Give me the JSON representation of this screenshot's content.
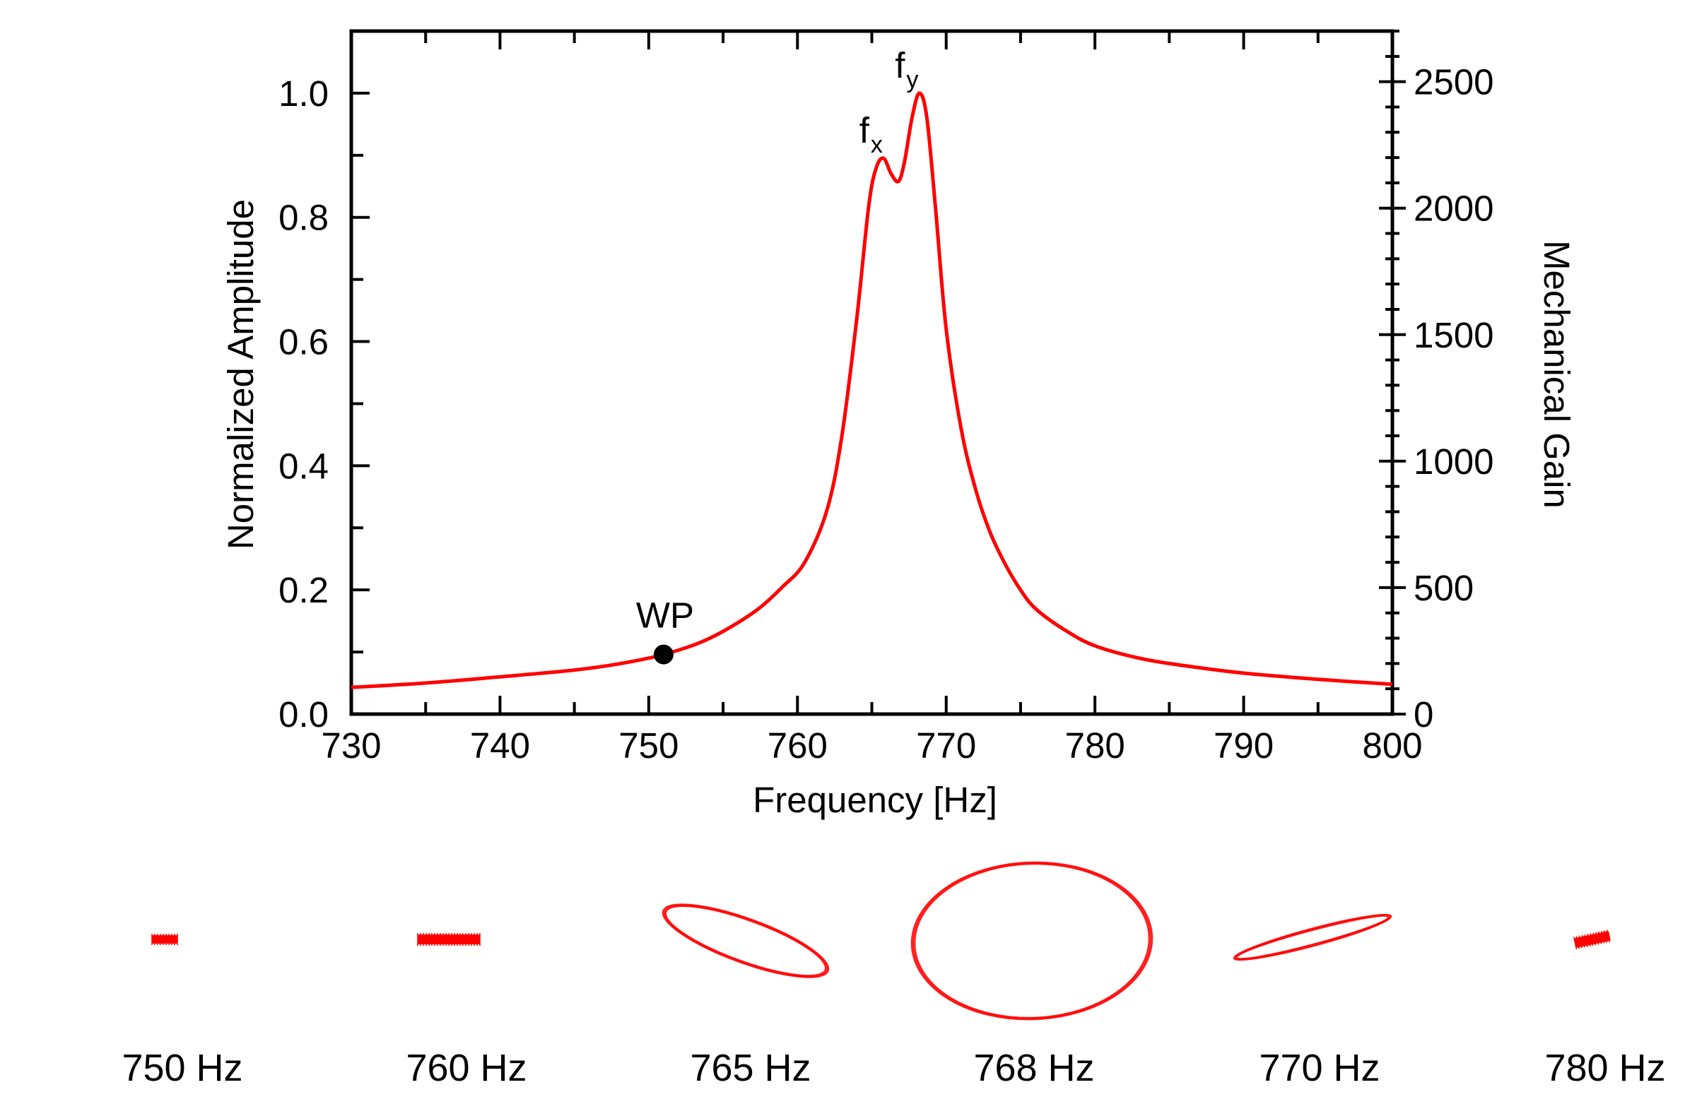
{
  "chart_data": {
    "type": "line",
    "xlabel": "Frequency [Hz]",
    "ylabel": "Normalized Amplitude",
    "y2label": "Mechanical Gain",
    "xlim": [
      730,
      800
    ],
    "ylim": [
      0,
      1.1
    ],
    "y2lim": [
      0,
      2700
    ],
    "x_ticks": [
      730,
      740,
      750,
      760,
      770,
      780,
      790,
      800
    ],
    "x_tick_labels": [
      "730",
      "740",
      "750",
      "760",
      "770",
      "780",
      "790",
      "800"
    ],
    "y_ticks": [
      0,
      0.2,
      0.4,
      0.6,
      0.8,
      1.0
    ],
    "y_tick_labels": [
      "0.0",
      "0.2",
      "0.4",
      "0.6",
      "0.8",
      "1.0"
    ],
    "y2_ticks": [
      0,
      500,
      1000,
      1500,
      2000,
      2500
    ],
    "y2_tick_labels": [
      "0",
      "500",
      "1000",
      "1500",
      "2000",
      "2500"
    ],
    "grid": false,
    "series_color": "#ff0000",
    "series": [
      {
        "x": [
          730,
          735,
          740,
          745,
          748,
          751,
          754,
          757,
          759,
          760.5,
          762,
          763,
          764,
          764.8,
          765.3,
          765.8,
          766.3,
          766.8,
          767.2,
          767.7,
          768.2,
          768.7,
          769.3,
          770,
          771,
          772,
          773,
          774,
          775,
          776,
          778,
          780,
          783,
          786,
          790,
          795,
          800
        ],
        "values": [
          0.043,
          0.05,
          0.06,
          0.071,
          0.081,
          0.096,
          0.121,
          0.163,
          0.205,
          0.245,
          0.33,
          0.45,
          0.64,
          0.82,
          0.88,
          0.895,
          0.87,
          0.858,
          0.89,
          0.96,
          1.0,
          0.96,
          0.81,
          0.62,
          0.46,
          0.36,
          0.29,
          0.24,
          0.2,
          0.17,
          0.135,
          0.11,
          0.09,
          0.078,
          0.066,
          0.056,
          0.048
        ]
      }
    ],
    "annotations": [
      {
        "text": "WP",
        "x": 751,
        "y": 0.096,
        "marker": true
      },
      {
        "text": "f",
        "sub": "x",
        "x": 765.8,
        "y": 0.895
      },
      {
        "text": "f",
        "sub": "y",
        "x": 768.2,
        "y": 1.0
      }
    ]
  },
  "orbits": [
    {
      "label": "750 Hz",
      "kind": "blob",
      "rx": 18,
      "ry": 6,
      "angle": 0
    },
    {
      "label": "760 Hz",
      "kind": "blob",
      "rx": 44,
      "ry": 7,
      "angle": 0
    },
    {
      "label": "765 Hz",
      "kind": "ellipse",
      "rx": 122,
      "ry": 30,
      "angle": 20
    },
    {
      "label": "768 Hz",
      "kind": "ellipse",
      "rx": 168,
      "ry": 110,
      "angle": -2
    },
    {
      "label": "770 Hz",
      "kind": "ellipse",
      "rx": 113,
      "ry": 11,
      "angle": -15
    },
    {
      "label": "780 Hz",
      "kind": "blob",
      "rx": 25,
      "ry": 7,
      "angle": -12
    }
  ]
}
